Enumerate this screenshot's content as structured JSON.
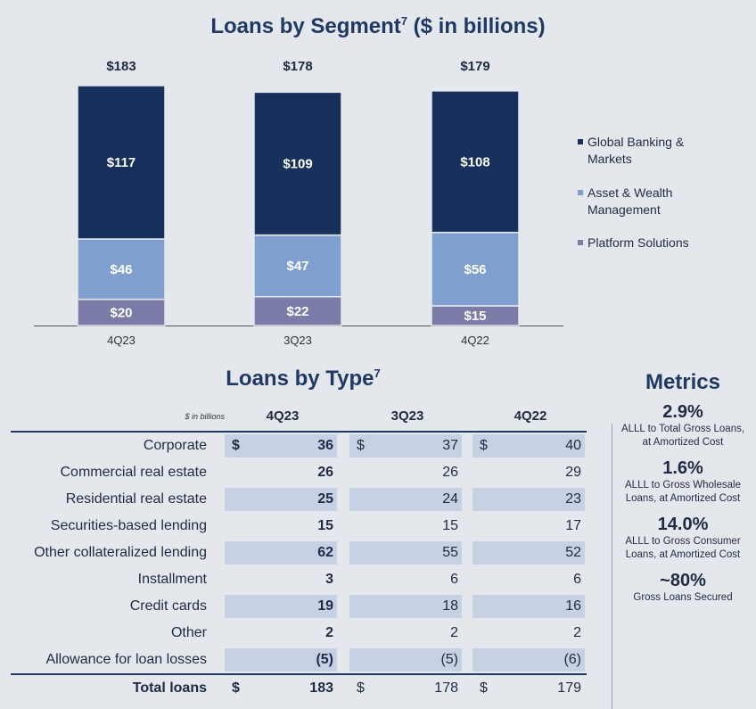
{
  "segment_chart": {
    "title": "Loans by Segment",
    "title_sup": "7",
    "title_suffix": " ($ in billions)"
  },
  "chart_data": {
    "type": "bar",
    "stacked": true,
    "title": "Loans by Segment7 ($ in billions)",
    "categories": [
      "4Q23",
      "3Q23",
      "4Q22"
    ],
    "totals": [
      183,
      178,
      179
    ],
    "total_labels": [
      "$183",
      "$178",
      "$179"
    ],
    "series": [
      {
        "name": "Platform Solutions",
        "values": [
          20,
          22,
          15
        ],
        "labels": [
          "$20",
          "$22",
          "$15"
        ],
        "color": "#7b7ba8"
      },
      {
        "name": "Asset & Wealth Management",
        "values": [
          46,
          47,
          56
        ],
        "labels": [
          "$46",
          "$47",
          "$56"
        ],
        "color": "#7f9fcf"
      },
      {
        "name": "Global Banking & Markets",
        "values": [
          117,
          109,
          108
        ],
        "labels": [
          "$117",
          "$109",
          "$108"
        ],
        "color": "#17305c"
      }
    ],
    "ylim": [
      0,
      183
    ],
    "legend_position": "right"
  },
  "legend": [
    {
      "name": "Global Banking & Markets",
      "color": "#17305c"
    },
    {
      "name": "Asset & Wealth Management",
      "color": "#7f9fcf"
    },
    {
      "name": "Platform Solutions",
      "color": "#7b7ba8"
    }
  ],
  "loan_table": {
    "title": "Loans by Type",
    "title_sup": "7",
    "unit_label": "$ in billions",
    "columns": [
      "4Q23",
      "3Q23",
      "4Q22"
    ],
    "rows": [
      {
        "label": "Corporate",
        "values": [
          "36",
          "37",
          "40"
        ],
        "dollar": true
      },
      {
        "label": "Commercial real estate",
        "values": [
          "26",
          "26",
          "29"
        ]
      },
      {
        "label": "Residential real estate",
        "values": [
          "25",
          "24",
          "23"
        ]
      },
      {
        "label": "Securities-based lending",
        "values": [
          "15",
          "15",
          "17"
        ]
      },
      {
        "label": "Other collateralized lending",
        "values": [
          "62",
          "55",
          "52"
        ]
      },
      {
        "label": "Installment",
        "values": [
          "3",
          "6",
          "6"
        ]
      },
      {
        "label": "Credit cards",
        "values": [
          "19",
          "18",
          "16"
        ]
      },
      {
        "label": "Other",
        "values": [
          "2",
          "2",
          "2"
        ]
      },
      {
        "label": "Allowance for loan losses",
        "values": [
          "(5)",
          "(5)",
          "(6)"
        ]
      }
    ],
    "total": {
      "label": "Total loans",
      "values": [
        "183",
        "178",
        "179"
      ]
    },
    "dollar_sign": "$"
  },
  "metrics": {
    "title": "Metrics",
    "items": [
      {
        "value": "2.9%",
        "desc": "ALLL to Total Gross Loans, at Amortized Cost"
      },
      {
        "value": "1.6%",
        "desc": "ALLL to Gross Wholesale Loans, at Amortized Cost"
      },
      {
        "value": "14.0%",
        "desc": "ALLL to Gross Consumer Loans, at Amortized Cost"
      },
      {
        "value": "~80%",
        "desc": "Gross Loans Secured"
      }
    ]
  }
}
